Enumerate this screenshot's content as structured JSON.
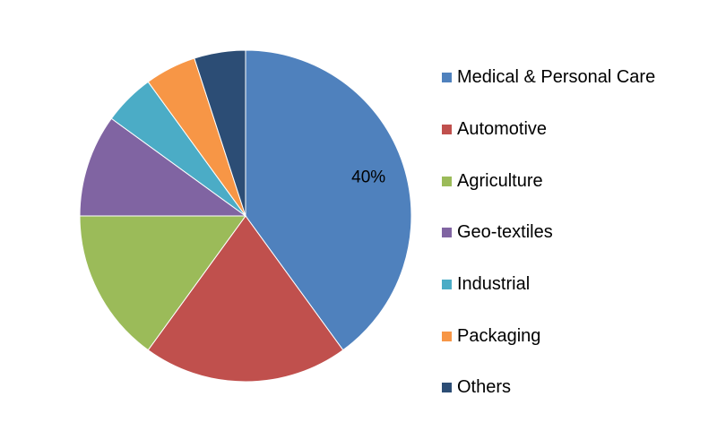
{
  "chart_data": {
    "type": "pie",
    "start_angle": "12 o'clock",
    "direction": "clockwise",
    "categories": [
      "Medical & Personal Care",
      "Automotive",
      "Agriculture",
      "Geo-textiles",
      "Industrial",
      "Packaging",
      "Others"
    ],
    "values": [
      40,
      20,
      15,
      10,
      5,
      5,
      5
    ],
    "unit": "%",
    "colors": [
      "#4F81BD",
      "#C0504D",
      "#9BBB59",
      "#8064A2",
      "#4BACC6",
      "#F79646",
      "#2C4D75"
    ],
    "data_labels": [
      {
        "category": "Medical & Personal Care",
        "text": "40%"
      }
    ],
    "legend": {
      "position": "right"
    },
    "title": ""
  }
}
